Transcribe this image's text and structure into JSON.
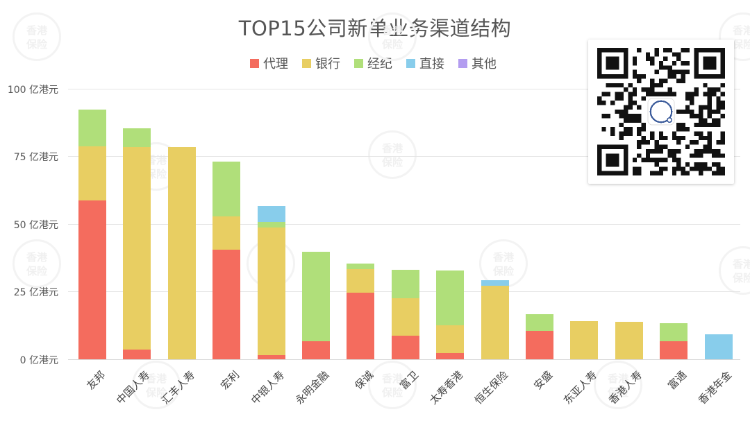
{
  "chart_data": {
    "type": "bar",
    "stacked": true,
    "title": "TOP15公司新单业务渠道结构",
    "xlabel": "",
    "ylabel": "",
    "ylim": [
      0,
      100
    ],
    "yticks": [
      0,
      25,
      50,
      75,
      100
    ],
    "ytick_labels": [
      "0 亿港元",
      "25 亿港元",
      "50 亿港元",
      "75 亿港元",
      "100 亿港元"
    ],
    "grid": true,
    "legend_position": "top",
    "categories": [
      "友邦",
      "中国人寿",
      "汇丰人寿",
      "宏利",
      "中银人寿",
      "永明金融",
      "保诚",
      "富卫",
      "太寿香港",
      "恒生保险",
      "安盛",
      "东亚人寿",
      "香港人寿",
      "富通",
      "香港年金"
    ],
    "series": [
      {
        "name": "代理",
        "color": "#f46c5e",
        "values": [
          58.6,
          3.6,
          0,
          40.4,
          1.5,
          6.6,
          24.6,
          8.7,
          2.3,
          0,
          10.5,
          0,
          0,
          6.6,
          0
        ]
      },
      {
        "name": "银行",
        "color": "#e8ce62",
        "values": [
          19.9,
          74.7,
          78.3,
          12.3,
          47.1,
          0,
          8.6,
          13.8,
          10.2,
          27.1,
          0,
          14.1,
          13.8,
          0,
          0
        ]
      },
      {
        "name": "经纪",
        "color": "#b0df7a",
        "values": [
          13.8,
          7.1,
          0,
          20.4,
          2.0,
          33.0,
          2.1,
          10.5,
          20.2,
          0,
          6.1,
          0,
          0,
          6.7,
          0
        ]
      },
      {
        "name": "直接",
        "color": "#88cdeb",
        "values": [
          0,
          0,
          0,
          0,
          5.9,
          0,
          0,
          0,
          0,
          2.1,
          0,
          0,
          0,
          0,
          9.2
        ]
      },
      {
        "name": "其他",
        "color": "#b39df0",
        "values": [
          0,
          0,
          0,
          0,
          0,
          0,
          0,
          0,
          0,
          0,
          0,
          0,
          0,
          0,
          0
        ]
      }
    ]
  },
  "watermark": {
    "logo_line1": "香港",
    "logo_line2": "保险"
  }
}
